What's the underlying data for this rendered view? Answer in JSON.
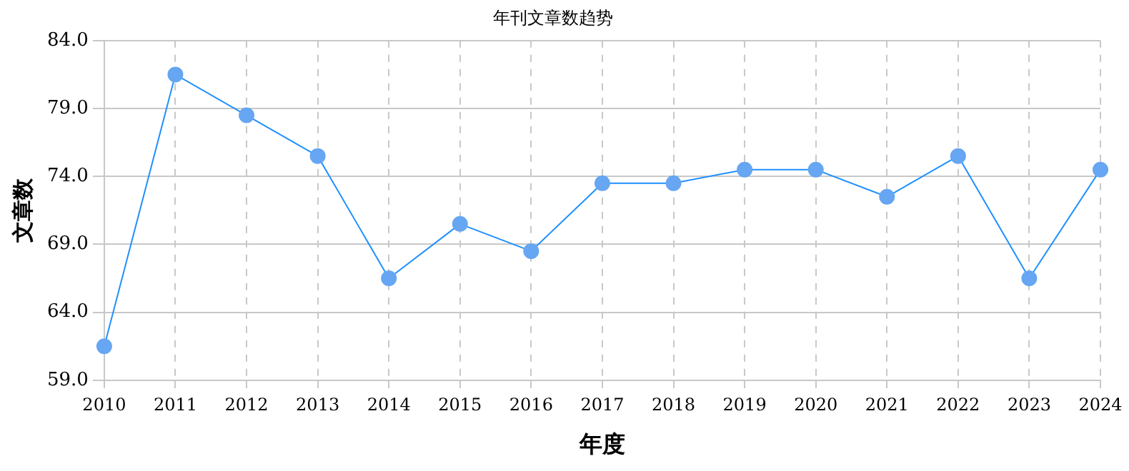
{
  "chart_data": {
    "type": "line",
    "title": "年刊文章数趋势",
    "xlabel": "年度",
    "ylabel": "文章数",
    "categories": [
      "2010",
      "2011",
      "2012",
      "2013",
      "2014",
      "2015",
      "2016",
      "2017",
      "2018",
      "2019",
      "2020",
      "2021",
      "2022",
      "2023",
      "2024"
    ],
    "series": [
      {
        "color": "#1e90ff",
        "values": [
          61.5,
          81.5,
          78.5,
          75.5,
          66.5,
          70.5,
          68.5,
          73.5,
          73.5,
          74.5,
          74.5,
          72.5,
          75.5,
          66.5,
          74.5
        ]
      }
    ],
    "ylim": [
      59,
      84
    ],
    "yticks": [
      {
        "value": 59,
        "label": "59.0"
      },
      {
        "value": 64,
        "label": "64.0"
      },
      {
        "value": 69,
        "label": "69.0"
      },
      {
        "value": 74,
        "label": "74.0"
      },
      {
        "value": 79,
        "label": "79.0"
      },
      {
        "value": 84,
        "label": "84.0"
      }
    ],
    "grid": true,
    "legend": false,
    "marker": "circle",
    "line_style": "solid"
  }
}
